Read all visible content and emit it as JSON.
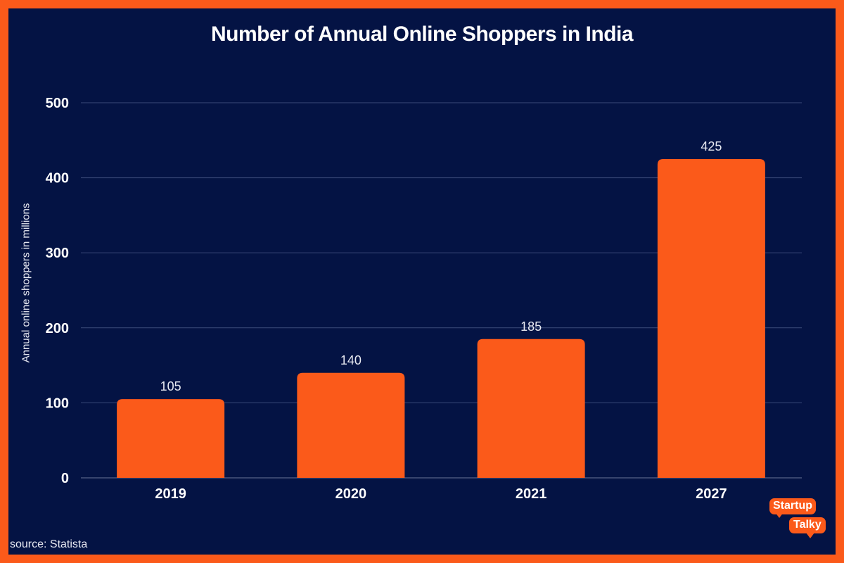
{
  "chart_data": {
    "type": "bar",
    "title": "Number of Annual Online Shoppers in India",
    "xlabel": "",
    "ylabel": "Annual online shoppers in millions",
    "categories": [
      "2019",
      "2020",
      "2021",
      "2027"
    ],
    "values": [
      105,
      140,
      185,
      425
    ],
    "data_labels": [
      "105",
      "140",
      "185",
      "425"
    ],
    "ylim": [
      0,
      500
    ],
    "yticks": [
      0,
      100,
      200,
      300,
      400,
      500
    ],
    "grid": true,
    "legend": "none"
  },
  "source": "source: Statista",
  "logo": {
    "line1": "Startup",
    "line2": "Talky"
  },
  "colors": {
    "background": "#041344",
    "border": "#fb5a1a",
    "bar": "#fb5a1a",
    "grid": "#3a4a78",
    "text": "#ffffff"
  }
}
